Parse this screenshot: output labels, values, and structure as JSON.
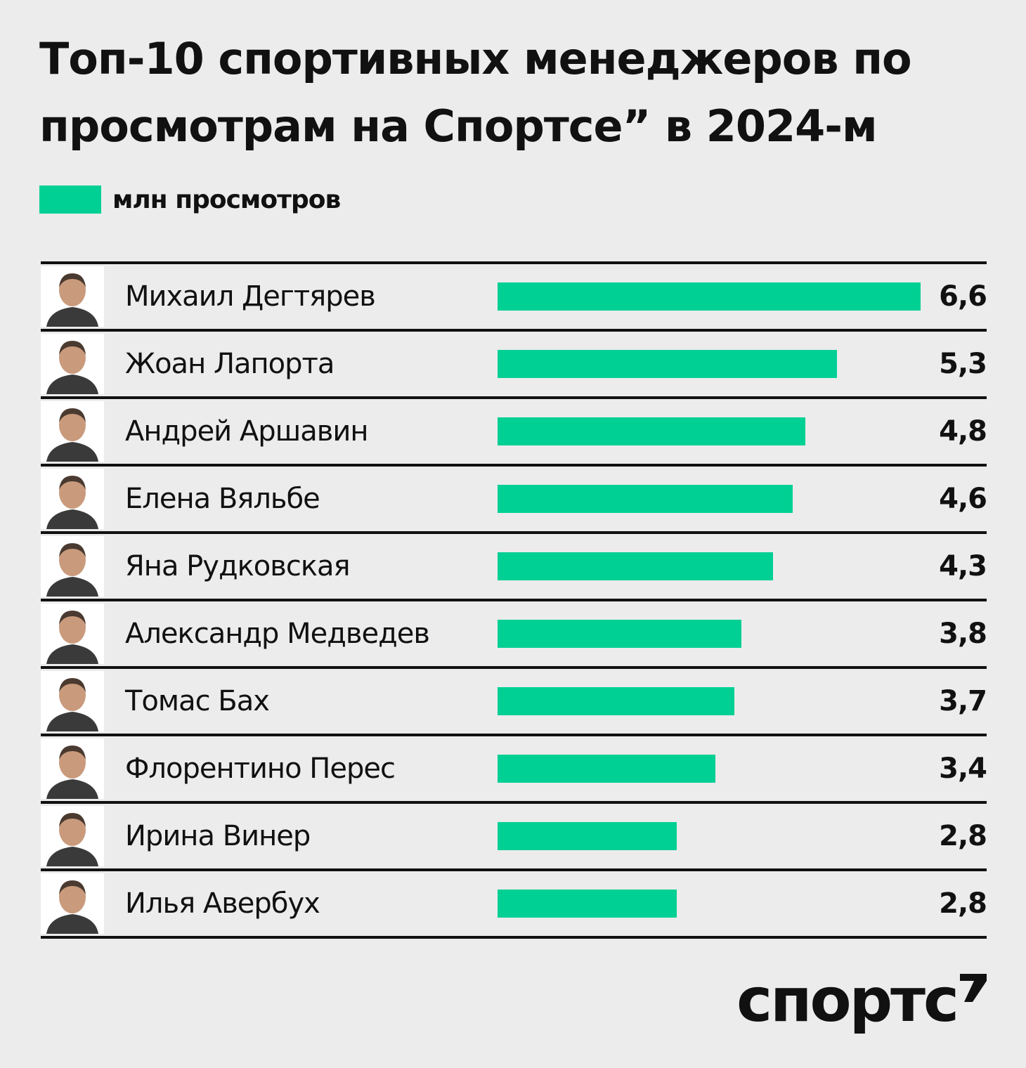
{
  "title": "Топ-10 спортивных менеджеров по просмотрам на Спортсе” в 2024-м",
  "legend": {
    "label": "млн просмотров",
    "color": "#00d094"
  },
  "brand": {
    "wordmark": "спортс"
  },
  "colors": {
    "background": "#ececec",
    "bar": "#00d094",
    "text": "#111111"
  },
  "chart_data": {
    "type": "bar",
    "orientation": "horizontal",
    "categories": [
      "Михаил Дегтярев",
      "Жоан Лапорта",
      "Андрей Аршавин",
      "Елена Вяльбе",
      "Яна Рудковская",
      "Александр Медведев",
      "Томас Бах",
      "Флорентино Перес",
      "Ирина Винер",
      "Илья Авербух"
    ],
    "values": [
      6.6,
      5.3,
      4.8,
      4.6,
      4.3,
      3.8,
      3.7,
      3.4,
      2.8,
      2.8
    ],
    "value_labels": [
      "6,6",
      "5,3",
      "4,8",
      "4,6",
      "4,3",
      "3,8",
      "3,7",
      "3,4",
      "2,8",
      "2,8"
    ],
    "legend": [
      "млн просмотров"
    ],
    "xlim": [
      0,
      6.6
    ],
    "grid": false
  }
}
